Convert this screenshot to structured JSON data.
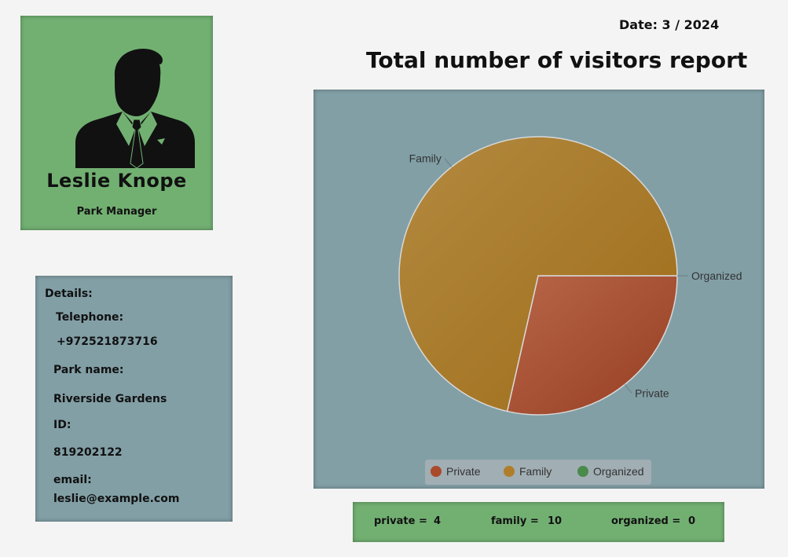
{
  "profile": {
    "name": "Leslie  Knope",
    "role": "Park Manager",
    "avatar_icon": "businessman-silhouette-icon"
  },
  "details": {
    "heading": "Details:",
    "telephone_label": "Telephone:",
    "telephone_value": "+972521873716",
    "park_label": "Park name:",
    "park_value": "Riverside Gardens",
    "id_label": "ID:",
    "id_value": "819202122",
    "email_label": "email:",
    "email_value": "leslie@example.com"
  },
  "report": {
    "date": "Date: 3 / 2024",
    "title": "Total number of visitors report"
  },
  "chart_data": {
    "type": "pie",
    "title": "",
    "categories": [
      "Private",
      "Family",
      "Organized"
    ],
    "values": [
      4,
      10,
      0
    ],
    "colors": [
      "#a94a2a",
      "#b07e2a",
      "#4a8a4a"
    ],
    "legend_position": "bottom"
  },
  "counts": {
    "private_label": "private =",
    "private_value": "4",
    "family_label": "family =",
    "family_value": "10",
    "organized_label": "organized =",
    "organized_value": "0"
  }
}
